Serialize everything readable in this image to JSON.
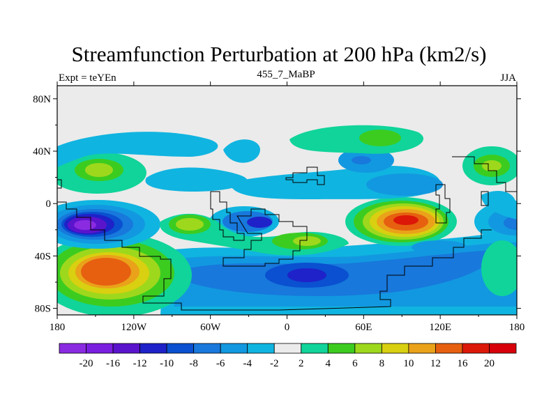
{
  "title": "Streamfunction Perturbation at 200 hPa (km2/s)",
  "left_string": "Expt = teYEn",
  "center_string": "455_7_MaBP",
  "right_string": "JJA",
  "lat_labels": [
    "80N",
    "40N",
    "0",
    "40S",
    "80S"
  ],
  "lat_values": [
    80,
    40,
    0,
    -40,
    -80
  ],
  "lon_labels": [
    "180",
    "120W",
    "60W",
    "0",
    "60E",
    "120E",
    "180"
  ],
  "lon_values": [
    -180,
    -120,
    -60,
    0,
    60,
    120,
    180
  ],
  "colorbar_labels": [
    "-20",
    "-16",
    "-12",
    "-10",
    "-8",
    "-6",
    "-4",
    "-2",
    "2",
    "4",
    "6",
    "8",
    "10",
    "12",
    "16",
    "20"
  ],
  "colorbar_colors": [
    "#8a2be2",
    "#7a1ee0",
    "#5a14cc",
    "#1e22c8",
    "#0a50d0",
    "#1878dc",
    "#1298e0",
    "#10b4e0",
    "#ebebeb",
    "#10d49a",
    "#3ccc20",
    "#9ed81c",
    "#d8d010",
    "#eaa21a",
    "#e66010",
    "#dc1808",
    "#d8000a"
  ],
  "colors": {
    "background": "#ebebeb",
    "coastline": "#000000"
  }
}
